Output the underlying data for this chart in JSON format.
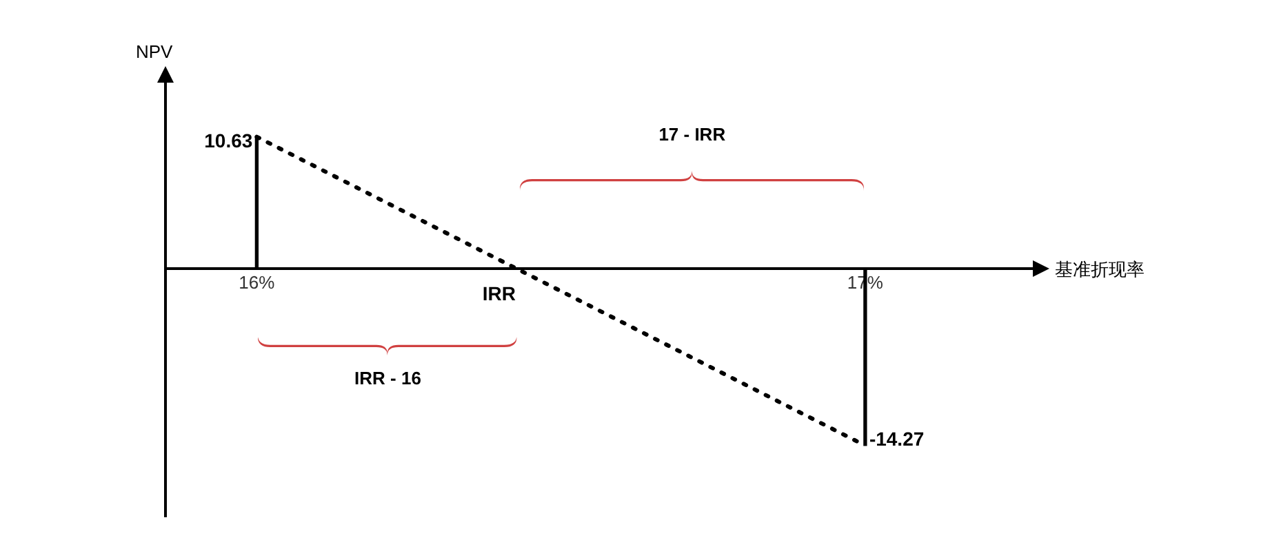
{
  "chart_data": {
    "type": "line",
    "xlabel": "基准折现率",
    "ylabel": "NPV",
    "xlim": [
      15.85,
      17.28
    ],
    "xticks": [
      {
        "value": 16,
        "label": "16%"
      },
      {
        "value": 17,
        "label": "17%"
      }
    ],
    "tick_labels": "x",
    "legend": false,
    "grid": false,
    "x": [
      16,
      17
    ],
    "series": [
      {
        "values": [
          10.63,
          -14.27
        ],
        "value_labels": [
          "10.63",
          "-14.27"
        ],
        "color": "#000000",
        "line_style": "dotted",
        "marker": "none"
      },
      {
        "type": "bar",
        "values": [
          10.63,
          -14.27
        ],
        "color": "#000000"
      }
    ],
    "annotations": [
      {
        "text": "IRR",
        "x": 16.43,
        "y": 0
      },
      "17 - IRR",
      "IRR - 16"
    ]
  }
}
